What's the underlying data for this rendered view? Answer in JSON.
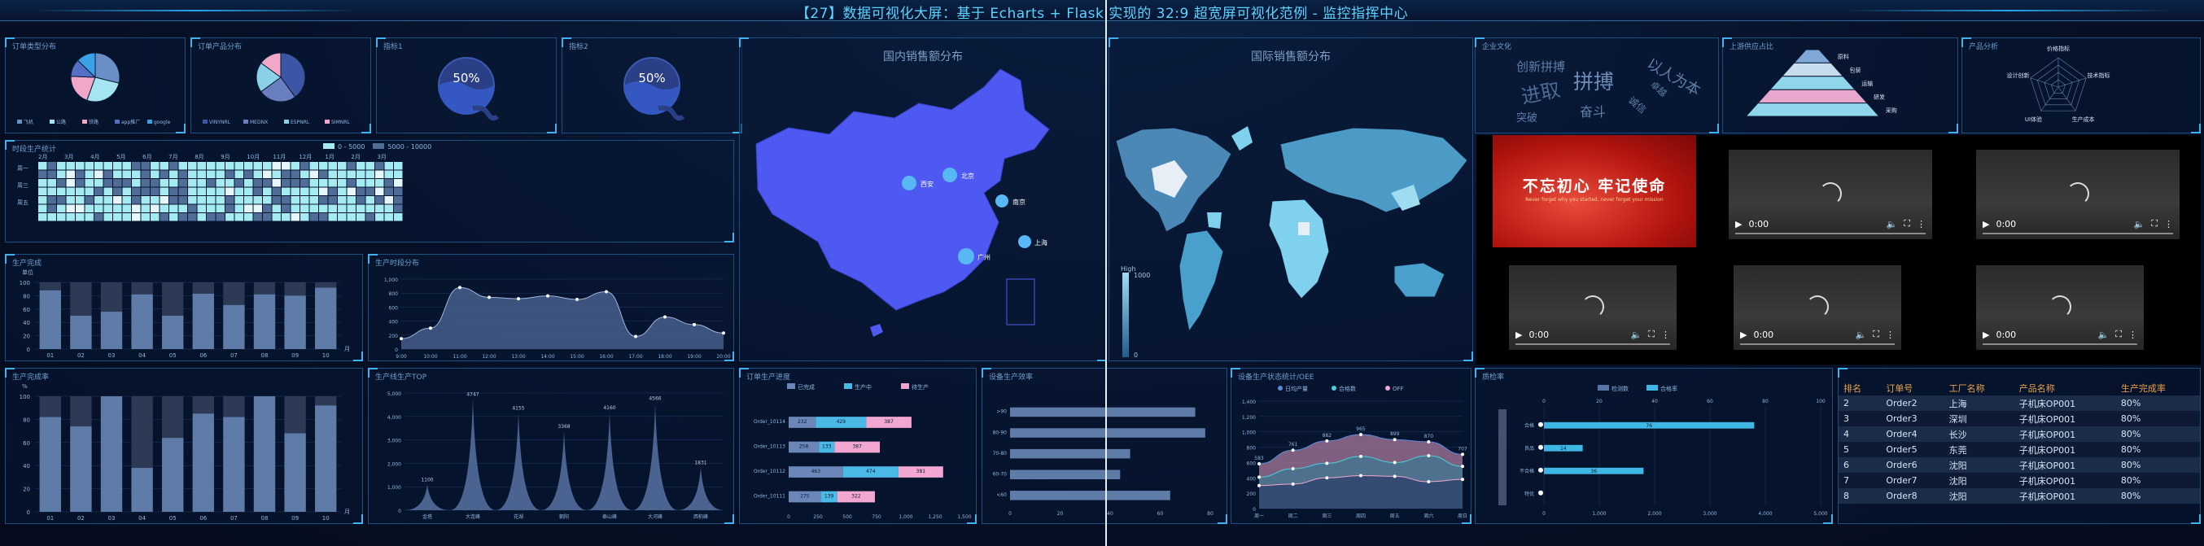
{
  "header": {
    "title": "【27】数据可视化大屏：基于 Echarts + Flask 实现的 32:9 超宽屏可视化范例 - 监控指挥中心"
  },
  "panels": {
    "pie1": {
      "title": "订单类型分布",
      "legend": [
        "飞机",
        "公路",
        "铁路",
        "app推广",
        "google"
      ]
    },
    "pie2": {
      "title": "订单产品分布",
      "legend": [
        "VINYNRL",
        "MEDNX",
        "ESPNRL",
        "SIMNRL"
      ]
    },
    "liquid1": {
      "title": "指标1",
      "value": "50%"
    },
    "liquid2": {
      "title": "指标2",
      "value": "50%"
    },
    "heatmap": {
      "title": "时段生产统计",
      "legend": [
        "0 - 5000",
        "5000 - 10000"
      ],
      "months": [
        "2月",
        "3月",
        "4月",
        "5月",
        "6月",
        "7月",
        "8月",
        "9月",
        "10月",
        "11月",
        "12月",
        "1月",
        "2月",
        "3月"
      ],
      "days": [
        "周一",
        "周三",
        "周五"
      ]
    },
    "bar1": {
      "title": "生产完成",
      "ylabel": "单位",
      "xunit": "月",
      "yticks": [
        "100",
        "80",
        "60",
        "40",
        "20",
        "0"
      ],
      "categories": [
        "01",
        "02",
        "03",
        "04",
        "05",
        "06",
        "07",
        "08",
        "09",
        "10"
      ]
    },
    "line1": {
      "title": "生产时段分布",
      "yticks": [
        "1,000",
        "800",
        "600",
        "400",
        "200",
        "0"
      ],
      "xticks": [
        "9:00",
        "10:00",
        "11:00",
        "12:00",
        "13:00",
        "14:00",
        "15:00",
        "16:00",
        "17:00",
        "18:00",
        "19:00",
        "20:00"
      ]
    },
    "bar2": {
      "title": "生产完成率",
      "ylabel": "%",
      "xunit": "月",
      "yticks": [
        "100",
        "80",
        "60",
        "40",
        "20",
        "0"
      ],
      "categories": [
        "01",
        "02",
        "03",
        "04",
        "05",
        "06",
        "07",
        "08",
        "09",
        "10"
      ]
    },
    "peaks": {
      "title": "生产线生产TOP",
      "yticks": [
        "5,000",
        "4,000",
        "3,000",
        "2,000",
        "1,000",
        "0"
      ],
      "categories": [
        "金塔",
        "大连峰",
        "花湖",
        "朝阳",
        "泰山峰",
        "大河峰",
        "西柏峰"
      ]
    },
    "china": {
      "title": "国内销售额分布",
      "cities": [
        "北京",
        "西安",
        "南京",
        "上海",
        "广州"
      ]
    },
    "hbar": {
      "title": "订单生产进度",
      "legend": [
        "已完成",
        "生产中",
        "待生产"
      ],
      "rows": [
        "Order_10114",
        "Order_10113",
        "Order_10112",
        "Order_10111"
      ],
      "xticks": [
        "0",
        "250",
        "500",
        "750",
        "1,000",
        "1,250",
        "1,500"
      ]
    },
    "hbar2": {
      "title": "设备生产效率",
      "rows": [
        ">90",
        "80-90",
        "70-80",
        "60-70",
        "<60"
      ],
      "xticks": [
        "0",
        "20",
        "40",
        "60",
        "80"
      ]
    },
    "world": {
      "title": "国际销售额分布",
      "vm_high": "High",
      "vm_max": "1000",
      "vm_min": "0"
    },
    "mixline": {
      "title": "设备生产状态统计/OEE",
      "legend": [
        "日均产量",
        "合格数",
        "OFF"
      ],
      "yticks": [
        "1,400",
        "1,200",
        "1,000",
        "800",
        "600",
        "400",
        "200",
        "0"
      ],
      "xticks": [
        "周一",
        "周二",
        "周三",
        "周四",
        "周五",
        "周六",
        "周日"
      ]
    },
    "barline": {
      "title": "质检率",
      "legend": [
        "检测数",
        "合格率"
      ],
      "rows": [
        "合格",
        "良品",
        "不合格",
        "特优"
      ],
      "top_ticks": [
        "0",
        "20",
        "40",
        "60",
        "80",
        "100"
      ],
      "bottom_ticks": [
        "0",
        "1,000",
        "2,000",
        "3,000",
        "4,000",
        "5,000"
      ]
    },
    "wordcloud": {
      "title": "企业文化",
      "words": [
        "创新拼搏",
        "拼搏",
        "以人为本",
        "进取",
        "突破",
        "奋斗",
        "诚信",
        "卓越"
      ]
    },
    "pyramid": {
      "title": "上游供应占比",
      "labels": [
        "原料",
        "包装",
        "运输",
        "研发",
        "采购"
      ]
    },
    "radar": {
      "title": "产品分析",
      "labels": [
        "价格指标",
        "技术指标",
        "生产成本",
        "UI体验",
        "设计创新"
      ]
    },
    "video": {
      "banner_main": "不忘初心 牢记使命",
      "banner_sub": "Never forget why you started, never forget your mission",
      "time": "0:00"
    },
    "table": {
      "headers": [
        "排名",
        "订单号",
        "工厂名称",
        "产品名称",
        "生产完成率"
      ],
      "rows": [
        [
          "2",
          "Order2",
          "上海",
          "子机床OP001",
          "80%"
        ],
        [
          "3",
          "Order3",
          "深圳",
          "子机床OP001",
          "80%"
        ],
        [
          "4",
          "Order4",
          "长沙",
          "子机床OP001",
          "80%"
        ],
        [
          "5",
          "Order5",
          "东莞",
          "子机床OP001",
          "80%"
        ],
        [
          "6",
          "Order6",
          "沈阳",
          "子机床OP001",
          "80%"
        ],
        [
          "7",
          "Order7",
          "沈阳",
          "子机床OP001",
          "80%"
        ],
        [
          "8",
          "Order8",
          "沈阳",
          "子机床OP001",
          "80%"
        ]
      ]
    }
  },
  "chart_data": [
    {
      "type": "pie",
      "title": "",
      "categories": [
        "飞机",
        "公路",
        "铁路",
        "app推广",
        "google"
      ],
      "values": [
        335,
        310,
        234,
        135,
        148
      ]
    },
    {
      "type": "pie",
      "title": "",
      "categories": [
        "VINYNRL",
        "MEDNX",
        "ESPNRL",
        "SIMNRL"
      ],
      "values": [
        40,
        25,
        20,
        15
      ]
    },
    {
      "type": "bar",
      "categories": [
        "01",
        "02",
        "03",
        "04",
        "05",
        "06",
        "07",
        "08",
        "09",
        "10"
      ],
      "series": [
        {
          "name": "",
          "values": [
            88,
            50,
            56,
            82,
            50,
            83,
            66,
            82,
            80,
            92
          ]
        },
        {
          "name": "",
          "values": [
            100,
            100,
            100,
            100,
            100,
            100,
            100,
            100,
            100,
            100
          ]
        }
      ],
      "ylim": [
        0,
        100
      ]
    },
    {
      "type": "area",
      "x": [
        "9:00",
        "10:00",
        "11:00",
        "12:00",
        "13:00",
        "14:00",
        "15:00",
        "16:00",
        "17:00",
        "18:00",
        "19:00",
        "20:00"
      ],
      "values": [
        150,
        300,
        880,
        740,
        720,
        760,
        710,
        820,
        180,
        460,
        350,
        230
      ],
      "ylim": [
        0,
        1000
      ]
    },
    {
      "type": "bar",
      "categories": [
        "01",
        "02",
        "03",
        "04",
        "05",
        "06",
        "07",
        "08",
        "09",
        "10"
      ],
      "series": [
        {
          "name": "",
          "values": [
            82,
            74,
            100,
            38,
            64,
            85,
            82,
            100,
            68,
            92
          ]
        },
        {
          "name": "",
          "values": [
            100,
            100,
            100,
            100,
            100,
            100,
            100,
            100,
            100,
            100
          ]
        }
      ],
      "ylim": [
        0,
        100
      ]
    },
    {
      "type": "area",
      "categories": [
        "金塔",
        "大连峰",
        "花湖",
        "朝阳",
        "泰山峰",
        "大河峰",
        "西柏峰"
      ],
      "values": [
        1100,
        4747,
        4155,
        3368,
        4160,
        4566,
        1831
      ],
      "ylim": [
        0,
        5000
      ]
    },
    {
      "type": "bar",
      "categories": [
        "Order_10114",
        "Order_10113",
        "Order_10112",
        "Order_10111"
      ],
      "series": [
        {
          "name": "已完成",
          "values": [
            232,
            258,
            463,
            275
          ]
        },
        {
          "name": "生产中",
          "values": [
            429,
            133,
            474,
            139
          ]
        },
        {
          "name": "待生产",
          "values": [
            387,
            387,
            381,
            322
          ]
        }
      ],
      "xlim": [
        0,
        1500
      ]
    },
    {
      "type": "bar",
      "categories": [
        ">90",
        "80-90",
        "70-80",
        "60-70",
        "<60"
      ],
      "values": [
        74,
        78,
        48,
        44,
        64
      ],
      "xlim": [
        0,
        80
      ]
    },
    {
      "type": "line",
      "categories": [
        "周一",
        "周二",
        "周三",
        "周四",
        "周五",
        "周六",
        "周日"
      ],
      "series": [
        {
          "name": "日均产量",
          "values": [
            583,
            761,
            882,
            965,
            899,
            870,
            707
          ]
        },
        {
          "name": "合格数",
          "values": [
            410,
            520,
            590,
            680,
            600,
            690,
            550
          ]
        },
        {
          "name": "OFF",
          "values": [
            300,
            320,
            400,
            430,
            420,
            350,
            380
          ]
        }
      ],
      "ylim": [
        0,
        1400
      ]
    },
    {
      "type": "bar",
      "categories": [
        "合格",
        "良品",
        "不合格",
        "特优"
      ],
      "series": [
        {
          "name": "检测数",
          "values": [
            76,
            14,
            36,
            0
          ]
        },
        {
          "name": "合格率",
          "values": [
            76,
            14,
            36,
            0
          ]
        }
      ],
      "xlim": [
        0,
        100
      ]
    }
  ]
}
